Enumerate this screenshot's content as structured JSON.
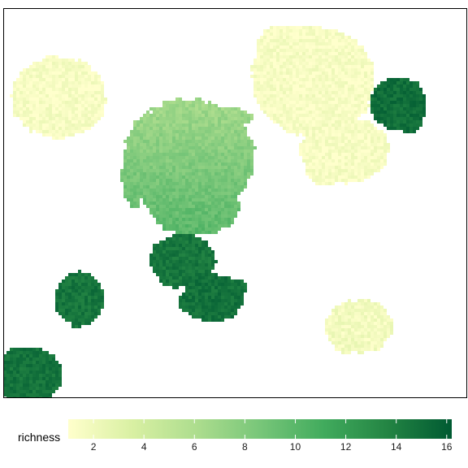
{
  "chart_data": {
    "type": "heatmap",
    "title": "",
    "xlabel": "",
    "ylabel": "",
    "legend": {
      "title": "richness",
      "placement": "bottom",
      "range": [
        1,
        16.2
      ],
      "ticks": [
        2,
        4,
        6,
        8,
        10,
        12,
        14,
        16
      ],
      "tick_labels": [
        "2",
        "4",
        "6",
        "8",
        "10",
        "12",
        "14",
        "16"
      ]
    },
    "colorscale": [
      "#ffffcc",
      "#d9f0a3",
      "#addd8e",
      "#78c679",
      "#41ab5d",
      "#238443",
      "#005a32"
    ],
    "background": "#ffffff",
    "grid": false,
    "regions": [
      {
        "name": "",
        "richness": 1.5,
        "gradient": null
      },
      {
        "name": "",
        "richness": 1.5,
        "gradient": null
      },
      {
        "name": "",
        "richness": 15.0,
        "gradient": null
      },
      {
        "name": "",
        "richness": 7.5,
        "gradient": [
          6.8,
          10.2
        ]
      },
      {
        "name": "",
        "richness": 14.5,
        "gradient": null
      },
      {
        "name": "",
        "richness": 14.8,
        "gradient": null
      },
      {
        "name": "",
        "richness": 14.6,
        "gradient": null
      },
      {
        "name": "",
        "richness": 1.8,
        "gradient": null
      },
      {
        "name": "",
        "richness": 14.7,
        "gradient": null
      }
    ]
  }
}
